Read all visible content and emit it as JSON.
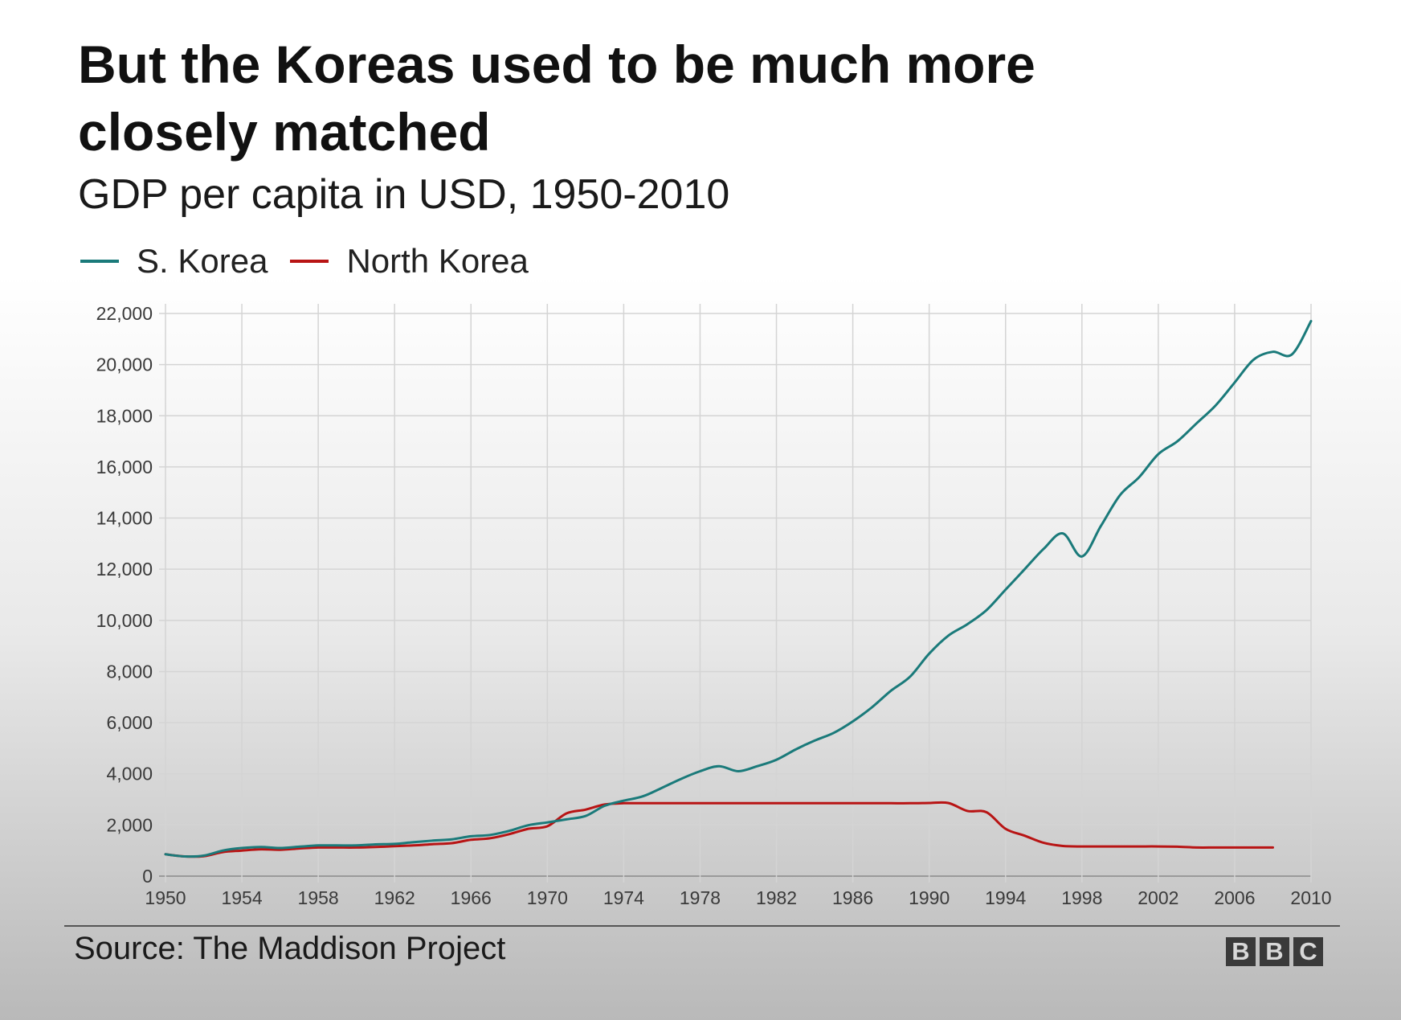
{
  "chart_data": {
    "type": "line",
    "title": "But the Koreas used to be much more closely matched",
    "subtitle": "GDP per capita in USD, 1950-2010",
    "xlabel": "",
    "ylabel": "",
    "xlim": [
      1950,
      2010
    ],
    "ylim": [
      0,
      22000
    ],
    "grid": true,
    "legend_placement": "top-left",
    "x_ticks": [
      1950,
      1954,
      1958,
      1962,
      1966,
      1970,
      1974,
      1978,
      1982,
      1986,
      1990,
      1994,
      1998,
      2002,
      2006,
      2010
    ],
    "x_tick_labels": [
      "1950",
      "1954",
      "1958",
      "1962",
      "1966",
      "1970",
      "1974",
      "1978",
      "1982",
      "1986",
      "1990",
      "1994",
      "1998",
      "2002",
      "2006",
      "2010"
    ],
    "y_ticks": [
      0,
      2000,
      4000,
      6000,
      8000,
      10000,
      12000,
      14000,
      16000,
      18000,
      20000,
      22000
    ],
    "y_tick_labels": [
      "0",
      "2,000",
      "4,000",
      "6,000",
      "8,000",
      "10,000",
      "12,000",
      "14,000",
      "16,000",
      "18,000",
      "20,000",
      "22,000"
    ],
    "series": [
      {
        "name": "S. Korea",
        "color": "#1a7a7a",
        "x": [
          1950,
          1951,
          1952,
          1953,
          1954,
          1955,
          1956,
          1957,
          1958,
          1959,
          1960,
          1961,
          1962,
          1963,
          1964,
          1965,
          1966,
          1967,
          1968,
          1969,
          1970,
          1971,
          1972,
          1973,
          1974,
          1975,
          1976,
          1977,
          1978,
          1979,
          1980,
          1981,
          1982,
          1983,
          1984,
          1985,
          1986,
          1987,
          1988,
          1989,
          1990,
          1991,
          1992,
          1993,
          1994,
          1995,
          1996,
          1997,
          1998,
          1999,
          2000,
          2001,
          2002,
          2003,
          2004,
          2005,
          2006,
          2007,
          2008,
          2009,
          2010
        ],
        "values": [
          854,
          770,
          800,
          1000,
          1100,
          1140,
          1100,
          1150,
          1200,
          1200,
          1200,
          1240,
          1260,
          1330,
          1390,
          1440,
          1560,
          1610,
          1770,
          1990,
          2100,
          2220,
          2350,
          2750,
          2950,
          3120,
          3450,
          3800,
          4100,
          4300,
          4100,
          4300,
          4550,
          4950,
          5300,
          5600,
          6050,
          6600,
          7250,
          7800,
          8700,
          9400,
          9850,
          10400,
          11200,
          12000,
          12800,
          13400,
          12500,
          13700,
          14900,
          15600,
          16500,
          17000,
          17700,
          18400,
          19300,
          20200,
          20500,
          20400,
          21700
        ]
      },
      {
        "name": "North Korea",
        "color": "#b81414",
        "x": [
          1950,
          1951,
          1952,
          1953,
          1954,
          1955,
          1956,
          1957,
          1958,
          1959,
          1960,
          1961,
          1962,
          1963,
          1964,
          1965,
          1966,
          1967,
          1968,
          1969,
          1970,
          1971,
          1972,
          1973,
          1974,
          1975,
          1976,
          1977,
          1978,
          1979,
          1980,
          1981,
          1982,
          1983,
          1984,
          1985,
          1986,
          1987,
          1988,
          1989,
          1990,
          1991,
          1992,
          1993,
          1994,
          1995,
          1996,
          1997,
          1998,
          1999,
          2000,
          2001,
          2002,
          2003,
          2004,
          2005,
          2006,
          2007,
          2008
        ],
        "values": [
          854,
          770,
          780,
          940,
          1000,
          1050,
          1030,
          1080,
          1120,
          1120,
          1120,
          1140,
          1170,
          1200,
          1250,
          1290,
          1420,
          1480,
          1640,
          1850,
          1950,
          2450,
          2600,
          2800,
          2850,
          2850,
          2850,
          2850,
          2850,
          2850,
          2850,
          2850,
          2850,
          2850,
          2850,
          2850,
          2850,
          2850,
          2850,
          2850,
          2860,
          2860,
          2550,
          2500,
          1850,
          1580,
          1300,
          1180,
          1160,
          1160,
          1160,
          1160,
          1160,
          1150,
          1120,
          1120,
          1120,
          1120,
          1120
        ]
      }
    ]
  },
  "header": {
    "title": "But the Koreas used to be much more closely matched",
    "subtitle": "GDP per capita in USD, 1950-2010"
  },
  "legend": {
    "items": [
      {
        "label": "S. Korea",
        "color": "#1a7a7a"
      },
      {
        "label": "North Korea",
        "color": "#b81414"
      }
    ]
  },
  "footer": {
    "source": "Source: The Maddison Project",
    "logo_letters": [
      "B",
      "B",
      "C"
    ]
  }
}
